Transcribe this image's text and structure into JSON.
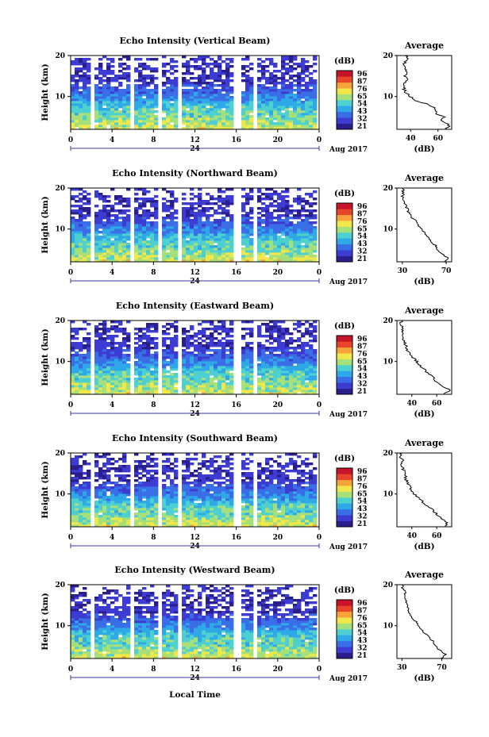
{
  "figure": {
    "date_label": "Aug 2017",
    "day_label": "24",
    "xlabel": "Local Time",
    "colorbar_unit": "(dB)",
    "colorbar_ticks": [
      "96",
      "87",
      "76",
      "65",
      "54",
      "43",
      "32",
      "21"
    ],
    "colormap": [
      "#2a1e8c",
      "#3c3cd2",
      "#3a6ee6",
      "#2fa8e8",
      "#4fd0d0",
      "#a6e07a",
      "#f0e84a",
      "#f4a43a",
      "#e8462a",
      "#c8142a"
    ],
    "avg_title": "Average",
    "avg_xlabel": "(dB)",
    "time_ticks": [
      "0",
      "4",
      "8",
      "12",
      "16",
      "20",
      "0"
    ],
    "height_ticks": [
      "20",
      "10"
    ],
    "ylabel": "Height (km)"
  },
  "chart_data": [
    {
      "type": "heatmap",
      "title": "Echo Intensity (Vertical Beam)",
      "x_range": [
        0,
        24
      ],
      "y_range": [
        2,
        20
      ],
      "color_range": [
        21,
        96
      ],
      "xlabel": "Local Time",
      "ylabel": "Height (km)",
      "data_gaps_hours": [
        [
          1.9,
          2.3
        ],
        [
          5.6,
          6.0
        ],
        [
          8.6,
          8.9
        ],
        [
          9.9,
          10.1
        ],
        [
          10.5,
          10.7
        ],
        [
          15.9,
          16.3
        ],
        [
          17.6,
          17.9
        ]
      ],
      "average_profile": {
        "xlabel": "(dB)",
        "xticks": [
          "40",
          "60"
        ],
        "xlim": [
          30,
          70
        ],
        "heights_km": [
          2,
          3,
          4,
          5,
          6,
          7,
          8,
          9,
          10,
          11,
          12,
          13,
          14,
          15,
          16,
          17,
          18,
          19,
          20
        ],
        "values_db": [
          66,
          68,
          63,
          64,
          58,
          58,
          54,
          44,
          40,
          36,
          35,
          34,
          37,
          36,
          38,
          36,
          35,
          38,
          36
        ]
      }
    },
    {
      "type": "heatmap",
      "title": "Echo Intensity (Northward Beam)",
      "x_range": [
        0,
        24
      ],
      "y_range": [
        2,
        20
      ],
      "color_range": [
        21,
        96
      ],
      "xlabel": "Local Time",
      "ylabel": "Height (km)",
      "data_gaps_hours": [
        [
          1.9,
          2.3
        ],
        [
          5.6,
          6.0
        ],
        [
          8.6,
          8.9
        ],
        [
          9.9,
          10.1
        ],
        [
          10.5,
          10.7
        ],
        [
          15.9,
          16.3
        ],
        [
          17.6,
          17.9
        ]
      ],
      "average_profile": {
        "xlabel": "(dB)",
        "xticks": [
          "30",
          "70"
        ],
        "xlim": [
          25,
          75
        ],
        "heights_km": [
          2,
          3,
          4,
          5,
          6,
          7,
          8,
          9,
          10,
          11,
          12,
          13,
          14,
          15,
          16,
          17,
          18,
          19,
          20
        ],
        "values_db": [
          68,
          72,
          66,
          62,
          60,
          56,
          54,
          50,
          47,
          44,
          42,
          38,
          36,
          34,
          33,
          31,
          30,
          31,
          30
        ]
      }
    },
    {
      "type": "heatmap",
      "title": "Echo Intensity (Eastward Beam)",
      "x_range": [
        0,
        24
      ],
      "y_range": [
        2,
        20
      ],
      "color_range": [
        21,
        96
      ],
      "xlabel": "Local Time",
      "ylabel": "Height (km)",
      "data_gaps_hours": [
        [
          1.9,
          2.3
        ],
        [
          5.6,
          6.0
        ],
        [
          8.6,
          8.9
        ],
        [
          9.9,
          10.1
        ],
        [
          10.5,
          10.7
        ],
        [
          15.9,
          16.3
        ],
        [
          17.6,
          17.9
        ]
      ],
      "average_profile": {
        "xlabel": "(dB)",
        "xticks": [
          "40",
          "60"
        ],
        "xlim": [
          28,
          72
        ],
        "heights_km": [
          2,
          3,
          4,
          5,
          6,
          7,
          8,
          9,
          10,
          11,
          12,
          13,
          14,
          15,
          16,
          17,
          18,
          19,
          20
        ],
        "values_db": [
          66,
          70,
          64,
          60,
          57,
          54,
          50,
          47,
          44,
          41,
          39,
          36,
          35,
          33,
          33,
          32,
          33,
          31,
          32
        ]
      }
    },
    {
      "type": "heatmap",
      "title": "Echo Intensity (Southward Beam)",
      "x_range": [
        0,
        24
      ],
      "y_range": [
        2,
        20
      ],
      "color_range": [
        21,
        96
      ],
      "xlabel": "Local Time",
      "ylabel": "Height (km)",
      "data_gaps_hours": [
        [
          1.9,
          2.3
        ],
        [
          5.6,
          6.0
        ],
        [
          8.6,
          8.9
        ],
        [
          9.9,
          10.1
        ],
        [
          10.5,
          10.7
        ],
        [
          15.9,
          16.3
        ],
        [
          17.6,
          17.9
        ]
      ],
      "average_profile": {
        "xlabel": "(dB)",
        "xticks": [
          "40",
          "60"
        ],
        "xlim": [
          28,
          72
        ],
        "heights_km": [
          2,
          3,
          4,
          5,
          6,
          7,
          8,
          9,
          10,
          11,
          12,
          13,
          14,
          15,
          16,
          17,
          18,
          19,
          20
        ],
        "values_db": [
          66,
          69,
          64,
          60,
          57,
          53,
          49,
          45,
          42,
          40,
          38,
          36,
          35,
          34,
          33,
          32,
          33,
          31,
          32
        ]
      }
    },
    {
      "type": "heatmap",
      "title": "Echo Intensity (Westward Beam)",
      "x_range": [
        0,
        24
      ],
      "y_range": [
        2,
        20
      ],
      "color_range": [
        21,
        96
      ],
      "xlabel": "Local Time",
      "ylabel": "Height (km)",
      "data_gaps_hours": [
        [
          1.9,
          2.3
        ],
        [
          5.6,
          6.0
        ],
        [
          8.6,
          8.9
        ],
        [
          9.9,
          10.1
        ],
        [
          10.5,
          10.7
        ],
        [
          15.9,
          16.3
        ],
        [
          17.6,
          17.9
        ]
      ],
      "average_profile": {
        "xlabel": "(dB)",
        "xticks": [
          "30",
          "70"
        ],
        "xlim": [
          25,
          80
        ],
        "heights_km": [
          2,
          3,
          4,
          5,
          6,
          7,
          8,
          9,
          10,
          11,
          12,
          13,
          14,
          15,
          16,
          17,
          18,
          19,
          20
        ],
        "values_db": [
          70,
          74,
          68,
          64,
          62,
          58,
          54,
          50,
          47,
          44,
          40,
          38,
          36,
          35,
          34,
          32,
          34,
          31,
          30
        ]
      }
    }
  ]
}
